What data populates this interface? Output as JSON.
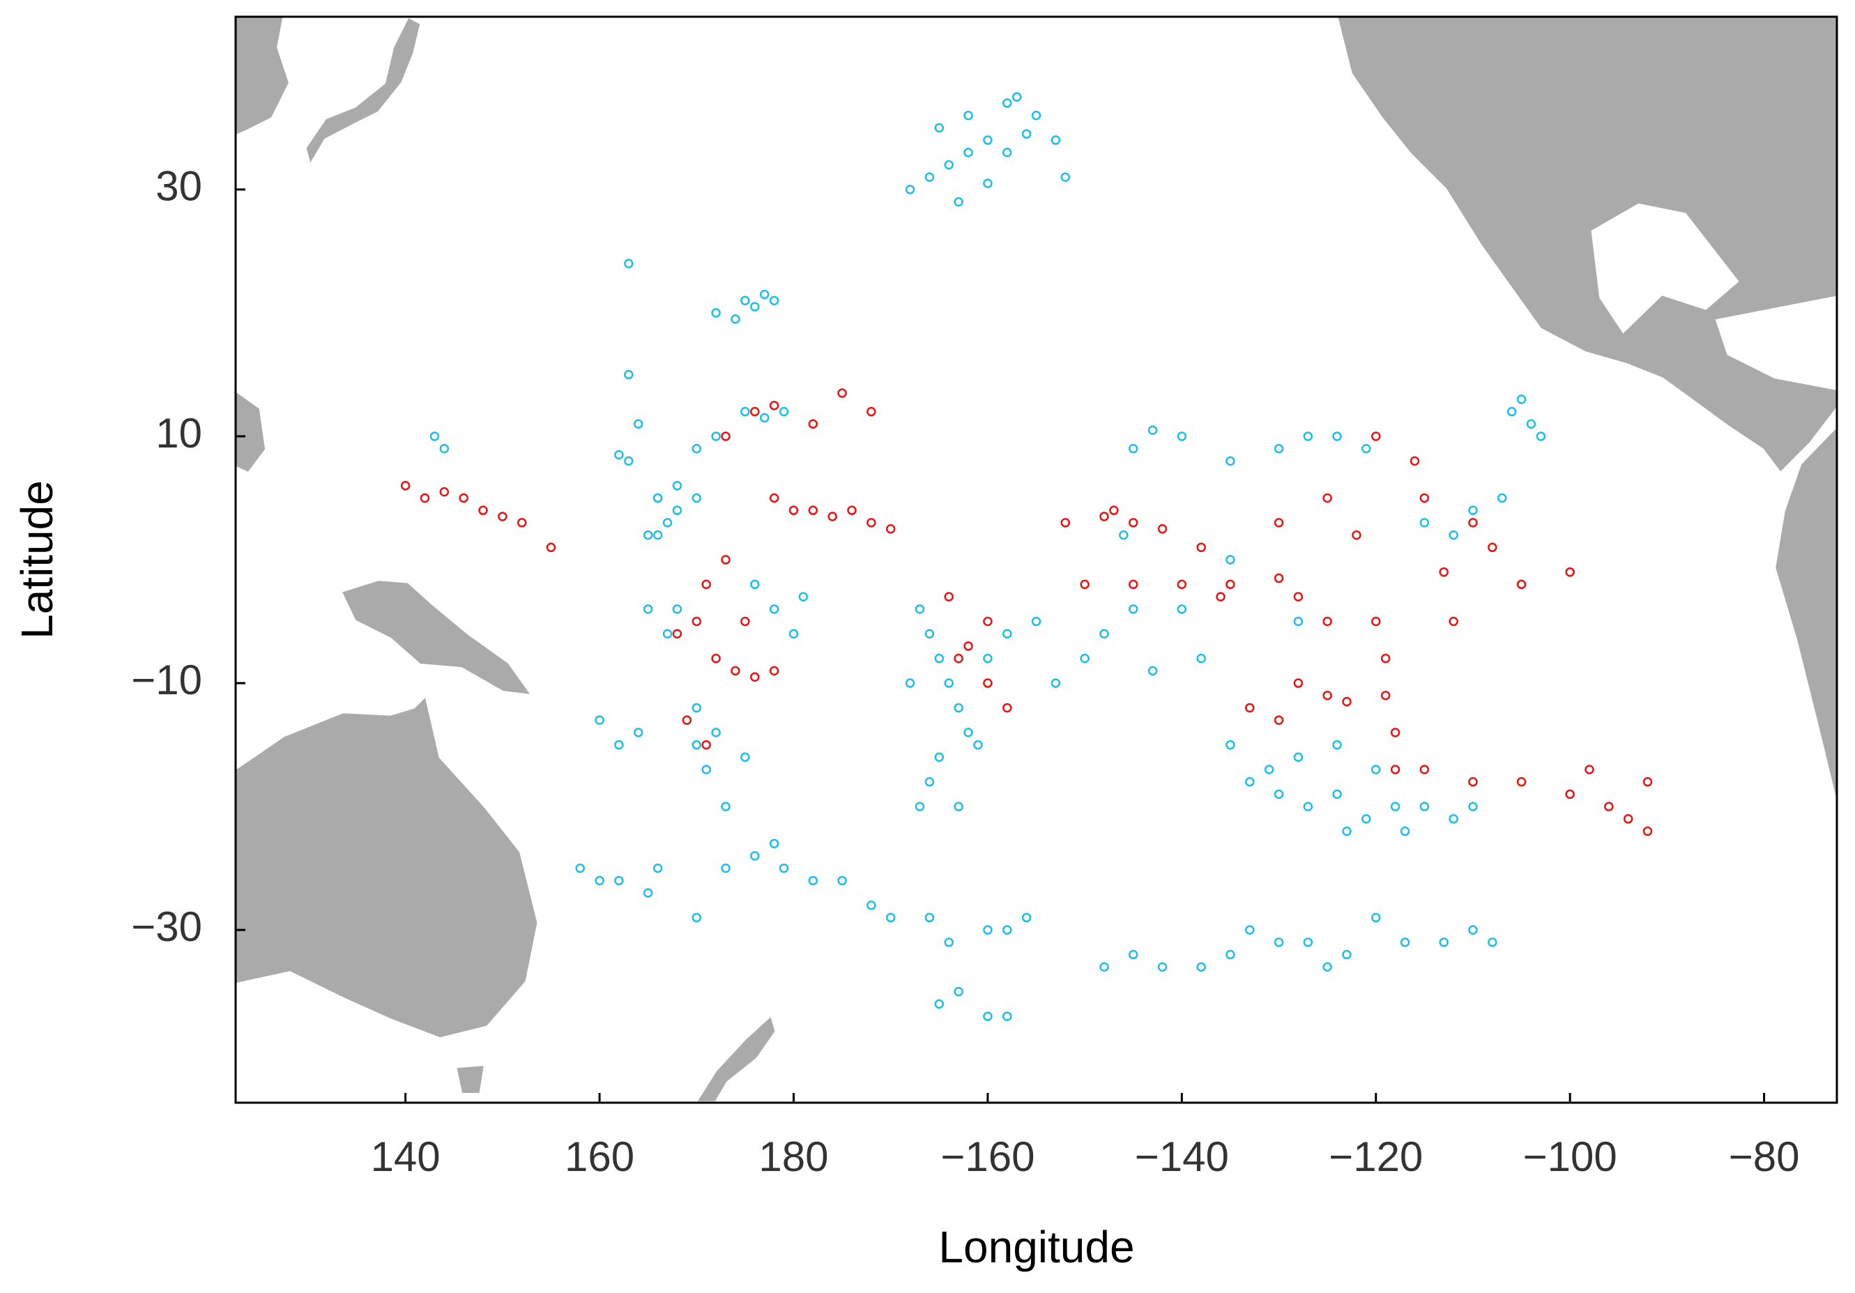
{
  "chart_data": {
    "type": "scatter",
    "xlabel": "Longitude",
    "ylabel": "Latitude",
    "xlim": [
      122.5,
      -72.5
    ],
    "ylim": [
      -44,
      44
    ],
    "xticks": [
      140,
      160,
      180,
      {
        "value": -160,
        "label": "−160"
      },
      {
        "value": -140,
        "label": "−140"
      },
      {
        "value": -120,
        "label": "−120"
      },
      {
        "value": -100,
        "label": "−100"
      },
      {
        "value": -80,
        "label": "−80"
      }
    ],
    "yticks": [
      30,
      10,
      {
        "value": -10,
        "label": "−10"
      },
      {
        "value": -30,
        "label": "−30"
      }
    ],
    "series": [
      {
        "color": "#19bfee",
        "x": [
          -168,
          -166,
          -164,
          -162,
          -160,
          -158,
          -157,
          -162,
          -165,
          -155,
          -153,
          -152,
          -163,
          -160,
          -158,
          -156,
          175,
          176,
          178,
          172,
          174,
          177,
          163,
          163,
          164,
          163,
          162,
          170,
          168,
          166,
          167,
          166,
          168,
          170,
          172,
          175,
          177,
          179,
          158,
          160,
          162,
          165,
          166,
          170,
          173,
          176,
          178,
          179,
          -178,
          -175,
          -172,
          -170,
          -166,
          -164,
          -160,
          -158,
          -156,
          -163,
          -160,
          -158,
          -165,
          -148,
          -145,
          -142,
          -138,
          -135,
          -133,
          -130,
          -127,
          -125,
          -123,
          -120,
          -117,
          -113,
          -110,
          -108,
          -105,
          -104,
          -103,
          -106,
          -130,
          -127,
          -124,
          -121,
          -135,
          -145,
          -140,
          -143,
          166,
          165,
          168,
          165,
          167,
          170,
          171,
          172,
          170,
          160,
          162,
          164,
          173,
          175,
          178,
          180,
          176,
          -179,
          -167,
          -166,
          -165,
          -164,
          -163,
          -162,
          -165,
          -166,
          -160,
          -161,
          -158,
          -163,
          -168,
          -167,
          -135,
          -133,
          -130,
          -127,
          -124,
          -121,
          -118,
          -115,
          -112,
          -110,
          -128,
          -124,
          -120,
          -131,
          -123,
          -117,
          -140,
          -145,
          -148,
          -150,
          -143,
          -138,
          -153,
          -155,
          -146,
          -135,
          -128,
          -110,
          -107,
          -105,
          -112,
          -115,
          -100,
          143,
          144
        ],
        "values": [
          30,
          31,
          32,
          33,
          34,
          37,
          37.5,
          36,
          35,
          36,
          34,
          31,
          29,
          30.5,
          33,
          34.5,
          21,
          20.5,
          21,
          20,
          19.5,
          21.5,
          24,
          15,
          11,
          8,
          8.5,
          5,
          4,
          5,
          3,
          2,
          6,
          9,
          10,
          12,
          11.5,
          12,
          -25,
          -26,
          -26,
          -27,
          -25,
          -29,
          -25,
          -24,
          -23,
          -25,
          -26,
          -26,
          -28,
          -29,
          -29,
          -31,
          -30,
          -30,
          -29,
          -35,
          -37,
          -37,
          -36,
          -33,
          -32,
          -33,
          -33,
          -32,
          -30,
          -31,
          -31,
          -33,
          -32,
          -29,
          -31,
          -31,
          -30,
          -31,
          13,
          11,
          10,
          12,
          9,
          10,
          10,
          9,
          8,
          9,
          10,
          10.5,
          5,
          2,
          -4,
          -4,
          -6,
          -15,
          -17,
          -14,
          -12,
          -13,
          -15,
          -14,
          -20,
          -16,
          -4,
          -6,
          -2,
          -3,
          -4,
          -6,
          -8,
          -10,
          -12,
          -14,
          -16,
          -18,
          -8,
          -15,
          -6,
          -20,
          -10,
          -20,
          -15,
          -18,
          -19,
          -20,
          -19,
          -21,
          -20,
          -20,
          -21,
          -20,
          -16,
          -15,
          -17,
          -17,
          -22,
          -22,
          -4,
          -4,
          -6,
          -8,
          -9,
          -8,
          -10,
          -5,
          2,
          0,
          -5,
          4,
          5,
          -2,
          2,
          3,
          -1,
          10,
          9
        ]
      },
      {
        "color": "#ee1111",
        "x": [
          140,
          142,
          144,
          146,
          148,
          150,
          152,
          155,
          180,
          178,
          -178,
          -176,
          -174,
          -172,
          -170,
          -152,
          -148,
          -145,
          -142,
          -147,
          -150,
          -145,
          -140,
          -135,
          -130,
          -128,
          -125,
          -120,
          -119,
          -119,
          -118,
          -118,
          -115,
          -110,
          -105,
          -100,
          -96,
          -94,
          -92,
          -92,
          -98,
          -128,
          -125,
          -123,
          -130,
          -133,
          168,
          170,
          172,
          174,
          176,
          178,
          171,
          173,
          175,
          169,
          171,
          -163,
          -160,
          -162,
          -158,
          -105,
          -100,
          -110,
          -108,
          -115,
          -125,
          -130,
          -122,
          -113,
          -112,
          176,
          178,
          -175,
          -172,
          173,
          -178,
          -164,
          -160,
          -138,
          -136,
          -120,
          -116
        ],
        "values": [
          6,
          5,
          5.5,
          5,
          4,
          3.5,
          3,
          1,
          4,
          5,
          4,
          3.5,
          4,
          3,
          2.5,
          3,
          3.5,
          3,
          2.5,
          4,
          -2,
          -2,
          -2,
          -2,
          -1.5,
          -3,
          -5,
          -5,
          -8,
          -11,
          -14,
          -17,
          -17,
          -18,
          -18,
          -19,
          -20,
          -21,
          -22,
          -18,
          -17,
          -10,
          -11,
          -11.5,
          -13,
          -12,
          -6,
          -5,
          -8,
          -9,
          -9.5,
          -9,
          -2,
          0,
          -5,
          -13,
          -15,
          -8,
          -10,
          -7,
          -12,
          -2,
          -1,
          3,
          1,
          5,
          5,
          3,
          2,
          -1,
          -5,
          12,
          12.5,
          13.5,
          12,
          10,
          11,
          -3,
          -5,
          1,
          -3,
          10,
          8
        ]
      }
    ]
  }
}
